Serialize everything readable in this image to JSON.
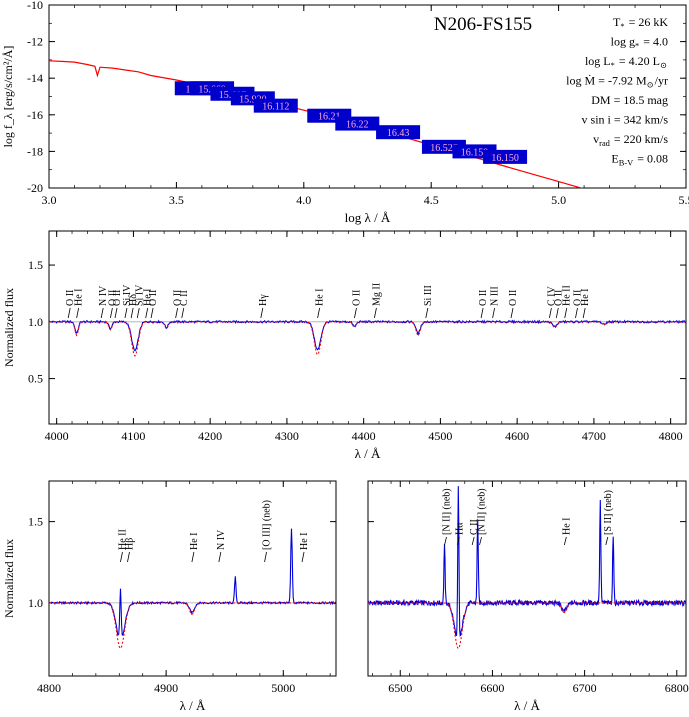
{
  "chart_data": [
    {
      "type": "line",
      "title": "N206-FS155",
      "xlabel": "log λ / Å",
      "ylabel": "log f_λ [erg/s/cm²/Å]",
      "xlim": [
        3.0,
        5.5
      ],
      "ylim": [
        -20,
        -10
      ],
      "xticks": [
        "3.0",
        "3.5",
        "4.0",
        "4.5",
        "5.0",
        "5.5"
      ],
      "yticks": [
        "-10",
        "-12",
        "-14",
        "-16",
        "-18",
        "-20"
      ],
      "series": [
        {
          "color": "#ff0000",
          "x": [
            3.0,
            3.05,
            3.1,
            3.15,
            3.18,
            3.19,
            3.2,
            3.25,
            3.3,
            3.35,
            3.4,
            3.5,
            3.6,
            3.7,
            3.8,
            3.9,
            4.0,
            4.1,
            4.2,
            4.3,
            4.4,
            4.5,
            4.6,
            4.7,
            4.8,
            4.9,
            5.0,
            5.1,
            5.18
          ],
          "y": [
            -13.05,
            -13.08,
            -13.12,
            -13.25,
            -13.35,
            -13.85,
            -13.4,
            -13.45,
            -13.55,
            -13.65,
            -13.85,
            -14.1,
            -14.4,
            -14.7,
            -15.05,
            -15.4,
            -15.75,
            -16.1,
            -16.5,
            -16.85,
            -17.25,
            -17.65,
            -18.05,
            -18.45,
            -18.85,
            -19.25,
            -19.65,
            -20.05,
            -20.4
          ]
        }
      ],
      "photometry": [
        {
          "label": "14.16",
          "x": 3.58,
          "y": -14.55
        },
        {
          "label": "15.669",
          "x": 3.64,
          "y": -14.55
        },
        {
          "label": "15.687",
          "x": 3.72,
          "y": -14.85
        },
        {
          "label": "15.920",
          "x": 3.8,
          "y": -15.1
        },
        {
          "label": "16.112",
          "x": 3.89,
          "y": -15.5
        },
        {
          "label": "16.21",
          "x": 4.1,
          "y": -16.05
        },
        {
          "label": "16.22",
          "x": 4.21,
          "y": -16.48
        },
        {
          "label": "16.43",
          "x": 4.37,
          "y": -16.95
        },
        {
          "label": "16.527",
          "x": 4.55,
          "y": -17.75
        },
        {
          "label": "16.159",
          "x": 4.67,
          "y": -18.0
        },
        {
          "label": "16.150",
          "x": 4.79,
          "y": -18.3
        }
      ],
      "parameters": [
        {
          "text": "T_* = 26 kK"
        },
        {
          "text": "log g_* = 4.0"
        },
        {
          "text": "log L_* = 4.20 L_⊙"
        },
        {
          "text": "log Ṁ = -7.92 M_⊙/yr"
        },
        {
          "text": "DM = 18.5 mag"
        },
        {
          "text": "v sin i = 342 km/s"
        },
        {
          "text": "v_rad = 220 km/s"
        },
        {
          "text": "E_B-V = 0.08"
        }
      ]
    },
    {
      "type": "line",
      "xlabel": "λ / Å",
      "ylabel": "Normalized flux",
      "xlim": [
        3990,
        4820
      ],
      "ylim": [
        0.1,
        1.8
      ],
      "xticks": [
        "4000",
        "4100",
        "4200",
        "4300",
        "4400",
        "4500",
        "4600",
        "4700",
        "4800"
      ],
      "yticks": [
        "0.5",
        "1.0",
        "1.5"
      ],
      "lines": [
        {
          "center": 4026,
          "depth": 0.12,
          "width": 3
        },
        {
          "center": 4070,
          "depth": 0.07,
          "width": 3
        },
        {
          "center": 4102,
          "depth": 0.3,
          "width": 6
        },
        {
          "center": 4143,
          "depth": 0.06,
          "width": 3
        },
        {
          "center": 4340,
          "depth": 0.29,
          "width": 6
        },
        {
          "center": 4388,
          "depth": 0.05,
          "width": 3
        },
        {
          "center": 4471,
          "depth": 0.12,
          "width": 4
        },
        {
          "center": 4649,
          "depth": 0.05,
          "width": 4
        },
        {
          "center": 4713,
          "depth": 0.03,
          "width": 3
        }
      ],
      "line_ids": [
        "O II",
        "He I",
        "N IV",
        "O II",
        "O II",
        "Si IV",
        "Hδ",
        "Si IV",
        "He I",
        "O II",
        "O II",
        "C II",
        "Hγ",
        "He I",
        "O II",
        "Mg II",
        "Si III",
        "O II",
        "N III",
        "O II",
        "C IV",
        "O II",
        "He II",
        "O II",
        "He I"
      ]
    },
    {
      "type": "line",
      "xlabel": "λ / Å",
      "ylabel": "Normalized flux",
      "xlim": [
        4800,
        5045
      ],
      "ylim": [
        0.55,
        1.75
      ],
      "xticks": [
        "4800",
        "4900",
        "5000"
      ],
      "yticks": [
        "1.0",
        "1.5"
      ],
      "lines": [
        {
          "center": 4861,
          "depth": 0.28,
          "width": 5
        },
        {
          "center": 4922,
          "depth": 0.07,
          "width": 3
        }
      ],
      "emission": [
        {
          "center": 4861,
          "height": 0.32
        },
        {
          "center": 4959,
          "height": 0.16
        },
        {
          "center": 5007,
          "height": 0.46
        }
      ],
      "line_ids": [
        "He II",
        "Hβ",
        "He I",
        "N IV",
        "[O III] (neb)",
        "He I"
      ]
    },
    {
      "type": "line",
      "xlabel": "λ / Å",
      "xlim": [
        6465,
        6810
      ],
      "ylim": [
        0.55,
        1.75
      ],
      "xticks": [
        "6500",
        "6600",
        "6700",
        "6800"
      ],
      "lines": [
        {
          "center": 6563,
          "depth": 0.28,
          "width": 6
        },
        {
          "center": 6678,
          "depth": 0.06,
          "width": 4
        }
      ],
      "emission": [
        {
          "center": 6548,
          "height": 0.35
        },
        {
          "center": 6563,
          "height": 0.95
        },
        {
          "center": 6584,
          "height": 0.52
        },
        {
          "center": 6717,
          "height": 0.62
        },
        {
          "center": 6731,
          "height": 0.42
        }
      ],
      "line_ids": [
        "[N II] (neb)",
        "Hα",
        "C II",
        "[N II] (neb)",
        "He I",
        "[S II] (neb)"
      ]
    }
  ]
}
